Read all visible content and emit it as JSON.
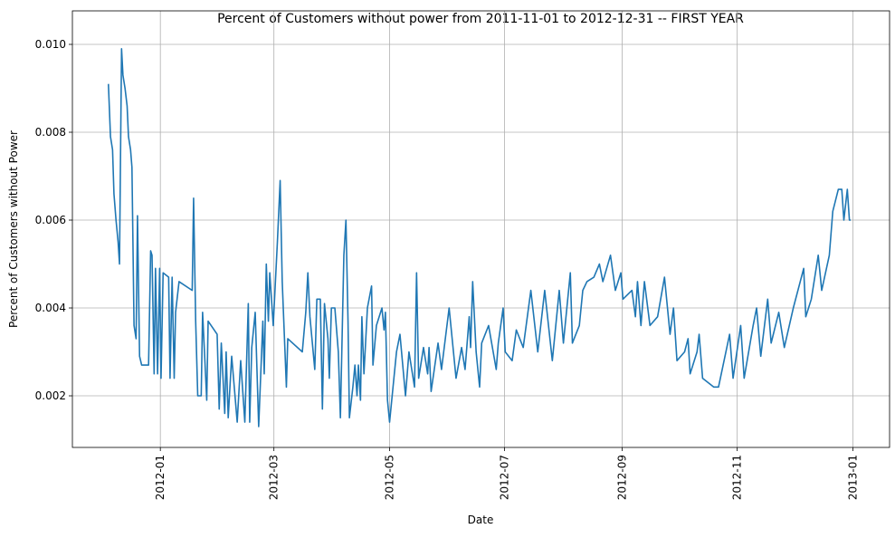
{
  "chart_data": {
    "type": "line",
    "title": "Percent of Customers without power from 2011-11-01 to 2012-12-31 -- FIRST YEAR",
    "xlabel": "Date",
    "ylabel": "Percent of Customers without Power",
    "color": "#1f77b4",
    "grid": true,
    "xlim": [
      2011.873,
      2013.053
    ],
    "xticks": [
      {
        "value": 2012.0,
        "label": "2012-01"
      },
      {
        "value": 2012.164,
        "label": "2012-03"
      },
      {
        "value": 2012.331,
        "label": "2012-05"
      },
      {
        "value": 2012.497,
        "label": "2012-07"
      },
      {
        "value": 2012.667,
        "label": "2012-09"
      },
      {
        "value": 2012.833,
        "label": "2012-11"
      },
      {
        "value": 2013.0,
        "label": "2013-01"
      }
    ],
    "ylim": [
      0.000825,
      0.010763
    ],
    "yticks": [
      0.002,
      0.004,
      0.006,
      0.008,
      {
        "value": 0.01,
        "label": "0.010"
      }
    ],
    "x": [
      2011.925,
      2011.928,
      2011.931,
      2011.933,
      2011.936,
      2011.939,
      2011.941,
      2011.944,
      2011.946,
      2011.949,
      2011.952,
      2011.954,
      2011.957,
      2011.959,
      2011.962,
      2011.965,
      2011.967,
      2011.97,
      2011.973,
      2011.983,
      2011.986,
      2011.988,
      2011.991,
      2011.993,
      2011.996,
      2011.999,
      2012.001,
      2012.004,
      2012.012,
      2012.014,
      2012.017,
      2012.02,
      2012.022,
      2012.027,
      2012.046,
      2012.048,
      2012.051,
      2012.054,
      2012.059,
      2012.061,
      2012.067,
      2012.069,
      2012.082,
      2012.085,
      2012.088,
      2012.093,
      2012.095,
      2012.098,
      2012.103,
      2012.111,
      2012.116,
      2012.122,
      2012.127,
      2012.129,
      2012.132,
      2012.137,
      2012.142,
      2012.148,
      2012.15,
      2012.153,
      2012.156,
      2012.158,
      2012.163,
      2012.169,
      2012.173,
      2012.176,
      2012.182,
      2012.184,
      2012.205,
      2012.21,
      2012.213,
      2012.216,
      2012.223,
      2012.226,
      2012.231,
      2012.234,
      2012.237,
      2012.242,
      2012.244,
      2012.247,
      2012.252,
      2012.257,
      2012.26,
      2012.265,
      2012.268,
      2012.271,
      2012.273,
      2012.278,
      2012.281,
      2012.284,
      2012.286,
      2012.289,
      2012.291,
      2012.294,
      2012.299,
      2012.305,
      2012.307,
      2012.312,
      2012.32,
      2012.323,
      2012.325,
      2012.328,
      2012.331,
      2012.336,
      2012.341,
      2012.346,
      2012.354,
      2012.359,
      2012.367,
      2012.37,
      2012.373,
      2012.38,
      2012.386,
      2012.388,
      2012.391,
      2012.401,
      2012.406,
      2012.417,
      2012.427,
      2012.435,
      2012.44,
      2012.446,
      2012.448,
      2012.451,
      2012.456,
      2012.461,
      2012.464,
      2012.474,
      2012.485,
      2012.488,
      2012.495,
      2012.498,
      2012.508,
      2012.514,
      2012.524,
      2012.535,
      2012.545,
      2012.555,
      2012.566,
      2012.576,
      2012.582,
      2012.592,
      2012.595,
      2012.605,
      2012.61,
      2012.616,
      2012.626,
      2012.634,
      2012.639,
      2012.65,
      2012.657,
      2012.665,
      2012.668,
      2012.681,
      2012.686,
      2012.689,
      2012.694,
      2012.699,
      2012.707,
      2012.718,
      2012.728,
      2012.736,
      2012.741,
      2012.746,
      2012.757,
      2012.762,
      2012.765,
      2012.775,
      2012.778,
      2012.783,
      2012.799,
      2012.806,
      2012.822,
      2012.827,
      2012.838,
      2012.843,
      2012.856,
      2012.861,
      2012.867,
      2012.877,
      2012.882,
      2012.893,
      2012.901,
      2012.914,
      2012.924,
      2012.929,
      2012.932,
      2012.94,
      2012.95,
      2012.955,
      2012.966,
      2012.971,
      2012.979,
      2012.984,
      2012.987,
      2012.992,
      2012.995,
      2012.997
    ],
    "values": [
      0.0091,
      0.0079,
      0.0076,
      0.0066,
      0.006,
      0.0055,
      0.005,
      0.0099,
      0.0093,
      0.009,
      0.0086,
      0.0079,
      0.0076,
      0.0072,
      0.0036,
      0.0033,
      0.0061,
      0.0029,
      0.0027,
      0.0027,
      0.0053,
      0.0052,
      0.0025,
      0.0049,
      0.0025,
      0.0049,
      0.0024,
      0.0048,
      0.0047,
      0.0024,
      0.0047,
      0.0024,
      0.0039,
      0.0046,
      0.0044,
      0.0065,
      0.0037,
      0.002,
      0.002,
      0.0039,
      0.0019,
      0.0037,
      0.0034,
      0.0017,
      0.0032,
      0.0016,
      0.003,
      0.0015,
      0.0029,
      0.0014,
      0.0028,
      0.0014,
      0.0041,
      0.0014,
      0.0031,
      0.0039,
      0.0013,
      0.0037,
      0.0025,
      0.005,
      0.0037,
      0.0048,
      0.0036,
      0.0055,
      0.0069,
      0.0046,
      0.0022,
      0.0033,
      0.003,
      0.0039,
      0.0048,
      0.0038,
      0.0026,
      0.0042,
      0.0042,
      0.0017,
      0.0041,
      0.0033,
      0.0024,
      0.004,
      0.004,
      0.003,
      0.0015,
      0.0052,
      0.006,
      0.0037,
      0.0015,
      0.0022,
      0.0027,
      0.002,
      0.0027,
      0.0019,
      0.0038,
      0.0025,
      0.004,
      0.0045,
      0.0027,
      0.0036,
      0.004,
      0.0035,
      0.0039,
      0.0019,
      0.0014,
      0.0022,
      0.003,
      0.0034,
      0.002,
      0.003,
      0.0022,
      0.0048,
      0.0024,
      0.0031,
      0.0025,
      0.0031,
      0.0021,
      0.0032,
      0.0026,
      0.004,
      0.0024,
      0.0031,
      0.0026,
      0.0038,
      0.0031,
      0.0046,
      0.003,
      0.0022,
      0.0032,
      0.0036,
      0.0026,
      0.0032,
      0.004,
      0.003,
      0.0028,
      0.0035,
      0.0031,
      0.0044,
      0.003,
      0.0044,
      0.0028,
      0.0044,
      0.0032,
      0.0048,
      0.0032,
      0.0036,
      0.0044,
      0.0046,
      0.0047,
      0.005,
      0.0046,
      0.0052,
      0.0044,
      0.0048,
      0.0042,
      0.0044,
      0.0038,
      0.0046,
      0.0036,
      0.0046,
      0.0036,
      0.0038,
      0.0047,
      0.0034,
      0.004,
      0.0028,
      0.003,
      0.0033,
      0.0025,
      0.003,
      0.0034,
      0.0024,
      0.0022,
      0.0022,
      0.0034,
      0.0024,
      0.0036,
      0.0024,
      0.0036,
      0.004,
      0.0029,
      0.0042,
      0.0032,
      0.0039,
      0.0031,
      0.004,
      0.0046,
      0.0049,
      0.0038,
      0.0042,
      0.0052,
      0.0044,
      0.0052,
      0.0062,
      0.0067,
      0.0067,
      0.006,
      0.0067,
      0.006,
      0.006
    ]
  }
}
